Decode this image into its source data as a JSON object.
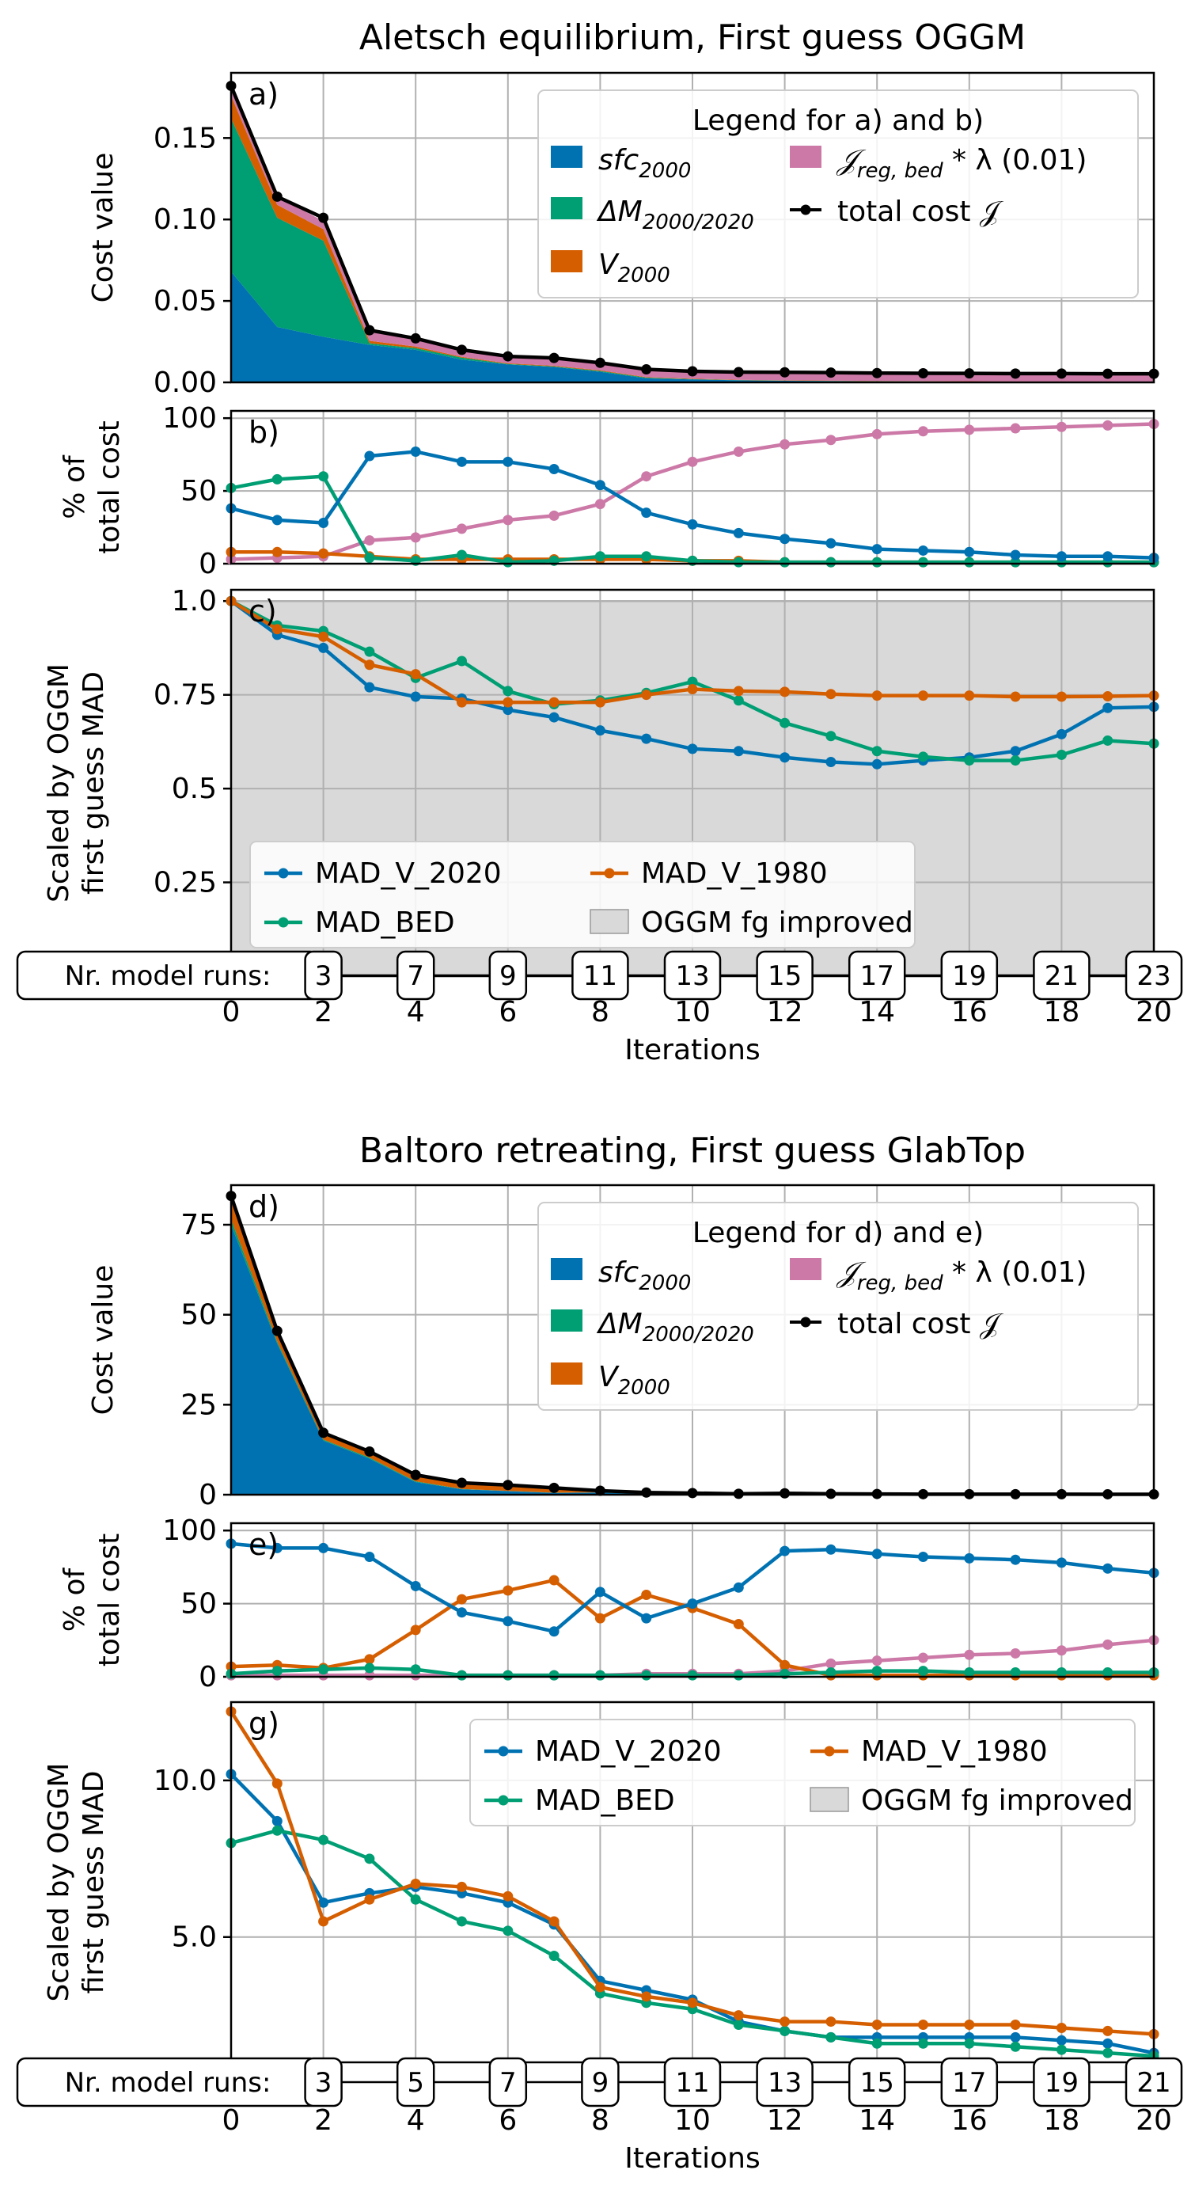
{
  "colors": {
    "sfc": "#0072b2",
    "dM": "#009e73",
    "V": "#d55e00",
    "reg": "#cc79a7",
    "total": "#000000",
    "improved": "#d9d9d9"
  },
  "iterations": [
    0,
    1,
    2,
    3,
    4,
    5,
    6,
    7,
    8,
    9,
    10,
    11,
    12,
    13,
    14,
    15,
    16,
    17,
    18,
    19,
    20
  ],
  "xlabel": "Iterations",
  "runs_label": "Nr. model runs:",
  "figures": [
    {
      "title": "Aletsch equilibrium, First guess OGGM",
      "cost": {
        "panel": "a)",
        "ylabel": "Cost value",
        "ylim": [
          0,
          0.19
        ],
        "yticks": [
          0,
          0.05,
          0.1,
          0.15
        ],
        "ytick_labels": [
          "0.00",
          "0.05",
          "0.10",
          "0.15"
        ],
        "legend_title": "Legend for a) and b)",
        "sfc": [
          0.068,
          0.034,
          0.028,
          0.023,
          0.02,
          0.014,
          0.011,
          0.0095,
          0.0065,
          0.0025,
          0.0018,
          0.0013,
          0.001,
          0.0008,
          0.0006,
          0.0005,
          0.0004,
          0.0003,
          0.0003,
          0.0003,
          0.0002
        ],
        "dM": [
          0.094,
          0.067,
          0.059,
          0.001,
          0.001,
          0.0012,
          0.0003,
          0.0003,
          0.0005,
          0.0004,
          0.0002,
          0.0001,
          0.0001,
          0.0001,
          0.0001,
          0.0001,
          0.0001,
          0.0001,
          0.0001,
          0.0001,
          0.0001
        ],
        "V": [
          0.014,
          0.008,
          0.007,
          0.0015,
          0.001,
          0.0005,
          0.0004,
          0.0004,
          0.0004,
          0.0003,
          0.0003,
          0.0002,
          0.0002,
          0.0002,
          0.0002,
          0.0002,
          0.0002,
          0.0002,
          0.0002,
          0.0002,
          0.0002
        ],
        "reg": [
          0.006,
          0.005,
          0.005,
          0.0065,
          0.0045,
          0.0045,
          0.0043,
          0.0048,
          0.0036,
          0.0046,
          0.0046,
          0.0048,
          0.0049,
          0.0049,
          0.0048,
          0.0048,
          0.0048,
          0.0048,
          0.0048,
          0.0048,
          0.0048
        ],
        "total": [
          0.182,
          0.114,
          0.101,
          0.032,
          0.027,
          0.02,
          0.016,
          0.015,
          0.012,
          0.008,
          0.0068,
          0.0063,
          0.0062,
          0.006,
          0.0057,
          0.0056,
          0.0055,
          0.0054,
          0.0054,
          0.0053,
          0.0053
        ]
      },
      "pct": {
        "panel": "b)",
        "ylabel_line1": "% of",
        "ylabel_line2": "total cost",
        "ylim": [
          0,
          105
        ],
        "yticks": [
          0,
          50,
          100
        ],
        "ytick_labels": [
          "0",
          "50",
          "100"
        ],
        "sfc": [
          38,
          30,
          28,
          74,
          77,
          70,
          70,
          65,
          54,
          35,
          27,
          21,
          17,
          14,
          10,
          9,
          8,
          6,
          5,
          5,
          4
        ],
        "dM": [
          52,
          58,
          60,
          4,
          2,
          6,
          1,
          2,
          5,
          5,
          2,
          1,
          1,
          1,
          1,
          1,
          1,
          1,
          1,
          1,
          1
        ],
        "V": [
          8,
          8,
          7,
          5,
          3,
          3,
          3,
          3,
          3,
          3,
          2,
          2,
          1,
          1,
          1,
          1,
          1,
          1,
          1,
          1,
          1
        ],
        "reg": [
          3,
          4,
          5,
          16,
          18,
          24,
          30,
          33,
          41,
          60,
          70,
          77,
          82,
          85,
          89,
          91,
          92,
          93,
          94,
          95,
          96
        ]
      },
      "mad": {
        "panel": "c)",
        "ylabel_line1": "Scaled by OGGM",
        "ylabel_line2": "first guess MAD",
        "ylim": [
          0.0,
          1.03
        ],
        "yticks": [
          0.25,
          0.5,
          0.75,
          1.0
        ],
        "ytick_labels": [
          "0.25",
          "0.5",
          "0.75",
          "1.0"
        ],
        "improved_max": 1.0,
        "v2020": [
          1.0,
          0.91,
          0.875,
          0.77,
          0.745,
          0.74,
          0.71,
          0.69,
          0.655,
          0.633,
          0.606,
          0.6,
          0.583,
          0.571,
          0.565,
          0.575,
          0.583,
          0.6,
          0.645,
          0.715,
          0.718
        ],
        "bed": [
          1.0,
          0.935,
          0.92,
          0.865,
          0.795,
          0.84,
          0.76,
          0.725,
          0.735,
          0.755,
          0.785,
          0.735,
          0.675,
          0.64,
          0.6,
          0.585,
          0.575,
          0.575,
          0.59,
          0.628,
          0.62
        ],
        "v1980": [
          1.0,
          0.925,
          0.905,
          0.83,
          0.805,
          0.73,
          0.73,
          0.73,
          0.73,
          0.75,
          0.765,
          0.76,
          0.758,
          0.752,
          0.748,
          0.748,
          0.748,
          0.745,
          0.745,
          0.746,
          0.748
        ],
        "legend": {
          "v2020": "MAD_V_2020",
          "v1980": "MAD_V_1980",
          "bed": "MAD_BED",
          "improved": "OGGM fg improved"
        },
        "legend_pos": "lower-left"
      },
      "runs": [
        "3",
        "7",
        "9",
        "11",
        "13",
        "15",
        "17",
        "19",
        "21",
        "23"
      ]
    },
    {
      "title": "Baltoro retreating, First guess GlabTop",
      "cost": {
        "panel": "d)",
        "ylabel": "Cost value",
        "ylim": [
          0,
          86
        ],
        "yticks": [
          0,
          25,
          50,
          75
        ],
        "ytick_labels": [
          "0",
          "25",
          "50",
          "75"
        ],
        "legend_title": "Legend for d) and e)",
        "sfc": [
          75,
          42,
          15,
          10,
          3.5,
          1.5,
          1.0,
          0.5,
          0.6,
          0.2,
          0.15,
          0.1,
          0.3,
          0.2,
          0.15,
          0.1,
          0.1,
          0.1,
          0.1,
          0.08,
          0.05
        ],
        "dM": [
          1.5,
          0.5,
          0.3,
          0.3,
          0.2,
          0.1,
          0.05,
          0.05,
          0.02,
          0.02,
          0.02,
          0.02,
          0.01,
          0.01,
          0.01,
          0.01,
          0.01,
          0.01,
          0.01,
          0.01,
          0.01
        ],
        "V": [
          6,
          3.5,
          1.5,
          1.5,
          1.7,
          1.7,
          1.6,
          1.3,
          0.4,
          0.3,
          0.2,
          0.07,
          0.03,
          0.01,
          0.01,
          0.01,
          0.01,
          0.01,
          0.01,
          0.01,
          0.01
        ],
        "reg": [
          0.5,
          0.4,
          0.3,
          0.2,
          0.1,
          0.1,
          0.05,
          0.05,
          0.05,
          0.05,
          0.05,
          0.05,
          0.03,
          0.02,
          0.02,
          0.02,
          0.02,
          0.02,
          0.02,
          0.02,
          0.02
        ],
        "total": [
          83,
          45.5,
          17.2,
          12,
          5.5,
          3.3,
          2.7,
          1.9,
          1.1,
          0.6,
          0.45,
          0.25,
          0.38,
          0.25,
          0.2,
          0.15,
          0.15,
          0.14,
          0.14,
          0.12,
          0.1
        ]
      },
      "pct": {
        "panel": "e)",
        "ylabel_line1": "% of",
        "ylabel_line2": "total cost",
        "ylim": [
          0,
          105
        ],
        "yticks": [
          0,
          50,
          100
        ],
        "ytick_labels": [
          "0",
          "50",
          "100"
        ],
        "sfc": [
          91,
          88,
          88,
          82,
          62,
          44,
          38,
          31,
          58,
          40,
          50,
          61,
          86,
          87,
          84,
          82,
          81,
          80,
          78,
          74,
          71
        ],
        "dM": [
          2,
          4,
          5,
          6,
          5,
          1,
          1,
          1,
          1,
          1,
          1,
          1,
          2,
          3,
          4,
          4,
          3,
          3,
          3,
          3,
          3
        ],
        "V": [
          7,
          8,
          6,
          12,
          32,
          53,
          59,
          66,
          40,
          56,
          47,
          36,
          8,
          1,
          1,
          1,
          1,
          1,
          1,
          1,
          1
        ],
        "reg": [
          1,
          1,
          1,
          1,
          1,
          1,
          1,
          1,
          1,
          2,
          2,
          2,
          4,
          9,
          11,
          13,
          15,
          16,
          18,
          22,
          25
        ]
      },
      "mad": {
        "panel": "g)",
        "ylabel_line1": "Scaled by OGGM",
        "ylabel_line2": "first guess MAD",
        "ylim": [
          1.0,
          12.5
        ],
        "yticks": [
          5.0,
          10.0
        ],
        "ytick_labels": [
          "5.0",
          "10.0"
        ],
        "improved_max": 1.0,
        "v2020": [
          10.2,
          8.7,
          6.1,
          6.4,
          6.6,
          6.4,
          6.1,
          5.4,
          3.6,
          3.3,
          3.0,
          2.3,
          2.0,
          1.8,
          1.8,
          1.8,
          1.8,
          1.8,
          1.7,
          1.6,
          1.3
        ],
        "bed": [
          8.0,
          8.4,
          8.1,
          7.5,
          6.2,
          5.5,
          5.2,
          4.4,
          3.2,
          2.9,
          2.7,
          2.2,
          2.0,
          1.8,
          1.6,
          1.6,
          1.6,
          1.5,
          1.4,
          1.3,
          1.2
        ],
        "v1980": [
          12.2,
          9.9,
          5.5,
          6.2,
          6.7,
          6.6,
          6.3,
          5.5,
          3.4,
          3.1,
          2.9,
          2.5,
          2.3,
          2.3,
          2.2,
          2.2,
          2.2,
          2.2,
          2.1,
          2.0,
          1.9
        ],
        "legend": {
          "v2020": "MAD_V_2020",
          "v1980": "MAD_V_1980",
          "bed": "MAD_BED",
          "improved": "OGGM fg improved"
        },
        "legend_pos": "upper-right"
      },
      "runs": [
        "3",
        "5",
        "7",
        "9",
        "11",
        "13",
        "15",
        "17",
        "19",
        "21"
      ]
    }
  ],
  "legend_labels": {
    "sfc_base": "sfc",
    "sfc_sub": "2000",
    "dM_base": "ΔM",
    "dM_sub": "2000/2020",
    "V_base": "V",
    "V_sub": "2000",
    "reg_base": "𝒥",
    "reg_sub": "reg, bed",
    "reg_suffix": " * λ (0.01)",
    "total": "total cost 𝒥"
  }
}
